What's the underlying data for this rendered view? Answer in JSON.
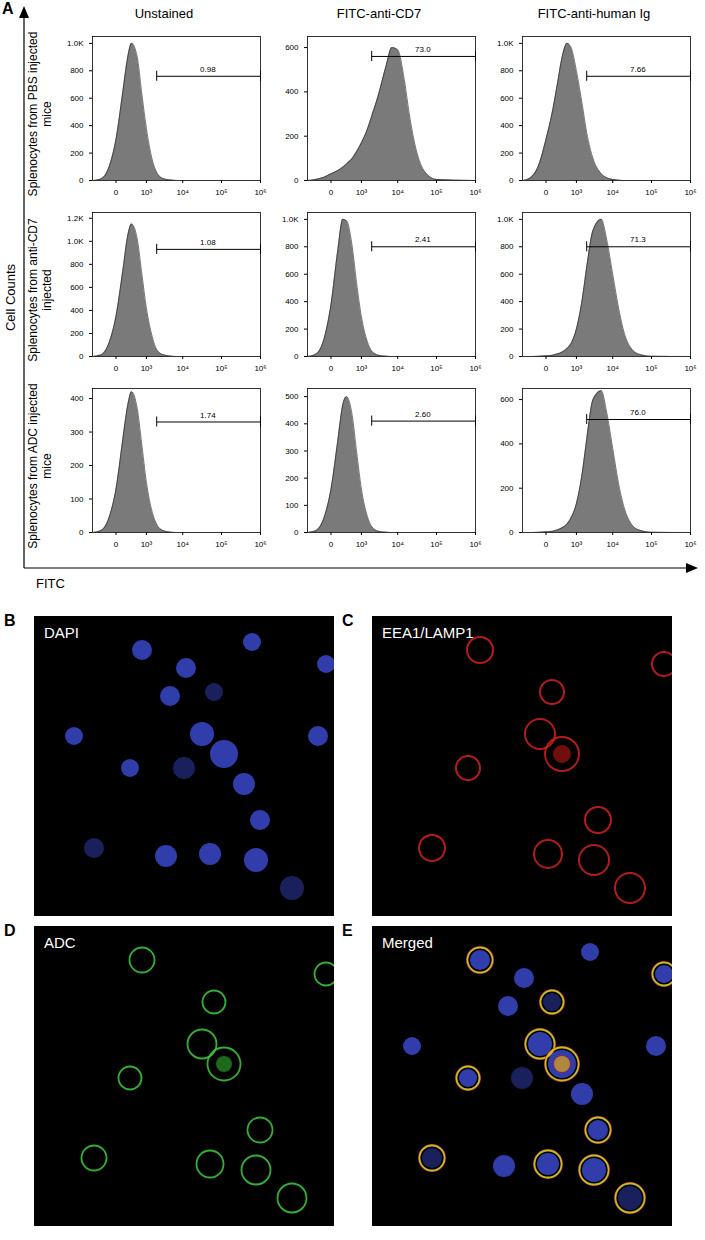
{
  "panel_a": {
    "letter": "A",
    "column_titles": [
      "Unstained",
      "FITC-anti-CD7",
      "FITC-anti-human Ig"
    ],
    "row_titles": [
      "Splenocytes from PBS injected mice",
      "Splenocytes from anti-CD7 injected",
      "Splenocytes from ADC injected mice"
    ],
    "y_label": "Cell Counts",
    "x_label": "FITC"
  },
  "chart_data": [
    {
      "type": "area",
      "color": "#7a7a7a",
      "log": "x",
      "x": [
        -600,
        -300,
        -100,
        0,
        100,
        200,
        300,
        500,
        700,
        1000,
        1500,
        2000,
        3000,
        5000,
        7000,
        10000,
        15000,
        20000,
        30000,
        50000,
        100000,
        1000000
      ],
      "values": [
        0,
        10,
        100,
        300,
        650,
        900,
        1000,
        900,
        650,
        380,
        150,
        60,
        15,
        3,
        0,
        0,
        0,
        0,
        0,
        0,
        0,
        0
      ],
      "xlim": [
        -600,
        1000000
      ],
      "xticks": [
        0,
        {
          "value": 1000,
          "label": "10³"
        },
        {
          "value": 10000,
          "label": "10⁴"
        },
        {
          "value": 100000,
          "label": "10⁵"
        },
        {
          "value": 1000000,
          "label": "10⁶"
        }
      ],
      "ylim": [
        0,
        1050
      ],
      "yticks": [
        0,
        200,
        400,
        600,
        800,
        {
          "value": 1000,
          "label": "1.0K"
        }
      ],
      "gate": {
        "x": [
          2000,
          1000000
        ],
        "y": 760,
        "label": "0.98"
      }
    },
    {
      "type": "area",
      "color": "#7a7a7a",
      "log": "x",
      "x": [
        -600,
        -300,
        -100,
        0,
        100,
        200,
        300,
        500,
        700,
        1000,
        1500,
        2000,
        3000,
        5000,
        7000,
        10000,
        15000,
        20000,
        30000,
        50000,
        100000,
        1000000
      ],
      "values": [
        0,
        5,
        15,
        30,
        45,
        60,
        75,
        100,
        130,
        170,
        230,
        290,
        380,
        520,
        600,
        590,
        450,
        300,
        140,
        40,
        5,
        0
      ],
      "xlim": [
        -600,
        1000000
      ],
      "xticks": [
        0,
        {
          "value": 1000,
          "label": "10³"
        },
        {
          "value": 10000,
          "label": "10⁴"
        },
        {
          "value": 100000,
          "label": "10⁵"
        },
        {
          "value": 1000000,
          "label": "10⁶"
        }
      ],
      "ylim": [
        0,
        650
      ],
      "yticks": [
        0,
        200,
        400,
        600
      ],
      "gate": {
        "x": [
          2000,
          1000000
        ],
        "y": 560,
        "label": "73.0"
      }
    },
    {
      "type": "area",
      "color": "#7a7a7a",
      "log": "x",
      "x": [
        -600,
        -300,
        -100,
        0,
        100,
        200,
        300,
        500,
        700,
        1000,
        1500,
        2000,
        3000,
        5000,
        7000,
        10000,
        15000,
        20000,
        30000,
        50000,
        100000,
        1000000
      ],
      "values": [
        0,
        20,
        120,
        300,
        520,
        720,
        880,
        1000,
        960,
        800,
        550,
        350,
        160,
        50,
        20,
        8,
        2,
        0,
        0,
        0,
        0,
        0
      ],
      "xlim": [
        -600,
        1000000
      ],
      "xticks": [
        0,
        {
          "value": 1000,
          "label": "10³"
        },
        {
          "value": 10000,
          "label": "10⁴"
        },
        {
          "value": 100000,
          "label": "10⁵"
        },
        {
          "value": 1000000,
          "label": "10⁶"
        }
      ],
      "ylim": [
        0,
        1050
      ],
      "yticks": [
        0,
        200,
        400,
        600,
        800,
        {
          "value": 1000,
          "label": "1.0K"
        }
      ],
      "gate": {
        "x": [
          2000,
          1000000
        ],
        "y": 760,
        "label": "7.66"
      }
    },
    {
      "type": "area",
      "color": "#7a7a7a",
      "log": "x",
      "x": [
        -600,
        -300,
        -100,
        0,
        100,
        200,
        300,
        500,
        700,
        1000,
        1500,
        2000,
        3000,
        5000,
        7000,
        10000,
        15000,
        20000,
        30000,
        50000,
        100000,
        1000000
      ],
      "values": [
        0,
        12,
        120,
        350,
        750,
        1050,
        1150,
        1020,
        740,
        420,
        170,
        60,
        15,
        3,
        0,
        0,
        0,
        0,
        0,
        0,
        0,
        0
      ],
      "xlim": [
        -600,
        1000000
      ],
      "xticks": [
        0,
        {
          "value": 1000,
          "label": "10³"
        },
        {
          "value": 10000,
          "label": "10⁴"
        },
        {
          "value": 100000,
          "label": "10⁵"
        },
        {
          "value": 1000000,
          "label": "10⁶"
        }
      ],
      "ylim": [
        0,
        1250
      ],
      "yticks": [
        0,
        200,
        400,
        600,
        800,
        {
          "value": 1000,
          "label": "1.0K"
        },
        {
          "value": 1200,
          "label": "1.2K"
        }
      ],
      "gate": {
        "x": [
          2000,
          1000000
        ],
        "y": 930,
        "label": "1.08"
      }
    },
    {
      "type": "area",
      "color": "#7a7a7a",
      "log": "x",
      "x": [
        -600,
        -300,
        -100,
        0,
        100,
        200,
        300,
        500,
        700,
        1000,
        1500,
        2000,
        3000,
        5000,
        7000,
        10000,
        15000,
        20000,
        30000,
        50000,
        100000,
        1000000
      ],
      "values": [
        0,
        15,
        130,
        380,
        780,
        1000,
        990,
        800,
        540,
        290,
        110,
        40,
        10,
        2,
        0,
        0,
        0,
        0,
        0,
        0,
        0,
        0
      ],
      "xlim": [
        -600,
        1000000
      ],
      "xticks": [
        0,
        {
          "value": 1000,
          "label": "10³"
        },
        {
          "value": 10000,
          "label": "10⁴"
        },
        {
          "value": 100000,
          "label": "10⁵"
        },
        {
          "value": 1000000,
          "label": "10⁶"
        }
      ],
      "ylim": [
        0,
        1050
      ],
      "yticks": [
        0,
        200,
        400,
        600,
        800,
        {
          "value": 1000,
          "label": "1.0K"
        }
      ],
      "gate": {
        "x": [
          2000,
          1000000
        ],
        "y": 800,
        "label": "2.41"
      }
    },
    {
      "type": "area",
      "color": "#7a7a7a",
      "log": "x",
      "x": [
        -600,
        -300,
        -100,
        0,
        100,
        200,
        300,
        500,
        700,
        1000,
        1500,
        2000,
        3000,
        5000,
        7000,
        10000,
        15000,
        20000,
        30000,
        50000,
        100000,
        1000000
      ],
      "values": [
        0,
        0,
        2,
        5,
        10,
        20,
        30,
        60,
        100,
        200,
        420,
        650,
        920,
        1000,
        850,
        600,
        320,
        170,
        60,
        15,
        2,
        0
      ],
      "xlim": [
        -600,
        1000000
      ],
      "xticks": [
        0,
        {
          "value": 1000,
          "label": "10³"
        },
        {
          "value": 10000,
          "label": "10⁴"
        },
        {
          "value": 100000,
          "label": "10⁵"
        },
        {
          "value": 1000000,
          "label": "10⁶"
        }
      ],
      "ylim": [
        0,
        1050
      ],
      "yticks": [
        0,
        200,
        400,
        600,
        800,
        {
          "value": 1000,
          "label": "1.0K"
        }
      ],
      "gate": {
        "x": [
          2000,
          1000000
        ],
        "y": 800,
        "label": "71.3"
      }
    },
    {
      "type": "area",
      "color": "#7a7a7a",
      "log": "x",
      "x": [
        -600,
        -300,
        -100,
        0,
        100,
        200,
        300,
        500,
        700,
        1000,
        1500,
        2000,
        3000,
        5000,
        7000,
        10000,
        15000,
        20000,
        30000,
        50000,
        100000,
        1000000
      ],
      "values": [
        0,
        5,
        45,
        130,
        280,
        380,
        420,
        370,
        270,
        150,
        60,
        25,
        6,
        1,
        0,
        0,
        0,
        0,
        0,
        0,
        0,
        0
      ],
      "xlim": [
        -600,
        1000000
      ],
      "xticks": [
        0,
        {
          "value": 1000,
          "label": "10³"
        },
        {
          "value": 10000,
          "label": "10⁴"
        },
        {
          "value": 100000,
          "label": "10⁵"
        },
        {
          "value": 1000000,
          "label": "10⁶"
        }
      ],
      "ylim": [
        0,
        430
      ],
      "yticks": [
        0,
        100,
        200,
        300,
        400
      ],
      "gate": {
        "x": [
          2000,
          1000000
        ],
        "y": 330,
        "label": "1.74"
      }
    },
    {
      "type": "area",
      "color": "#7a7a7a",
      "log": "x",
      "x": [
        -600,
        -300,
        -100,
        0,
        100,
        200,
        300,
        500,
        700,
        1000,
        1500,
        2000,
        3000,
        5000,
        7000,
        10000,
        15000,
        20000,
        30000,
        50000,
        100000,
        1000000
      ],
      "values": [
        0,
        6,
        55,
        160,
        340,
        470,
        500,
        430,
        300,
        160,
        60,
        22,
        5,
        1,
        0,
        0,
        0,
        0,
        0,
        0,
        0,
        0
      ],
      "xlim": [
        -600,
        1000000
      ],
      "xticks": [
        0,
        {
          "value": 1000,
          "label": "10³"
        },
        {
          "value": 10000,
          "label": "10⁴"
        },
        {
          "value": 100000,
          "label": "10⁵"
        },
        {
          "value": 1000000,
          "label": "10⁶"
        }
      ],
      "ylim": [
        0,
        530
      ],
      "yticks": [
        0,
        100,
        200,
        300,
        400,
        500
      ],
      "gate": {
        "x": [
          2000,
          1000000
        ],
        "y": 410,
        "label": "2.60"
      }
    },
    {
      "type": "area",
      "color": "#7a7a7a",
      "log": "x",
      "x": [
        -600,
        -300,
        -100,
        0,
        100,
        200,
        300,
        500,
        700,
        1000,
        1500,
        2000,
        3000,
        5000,
        7000,
        10000,
        15000,
        20000,
        30000,
        50000,
        100000,
        1000000
      ],
      "values": [
        0,
        0,
        1,
        3,
        6,
        12,
        20,
        40,
        70,
        130,
        270,
        420,
        600,
        640,
        540,
        380,
        200,
        110,
        40,
        10,
        1,
        0
      ],
      "xlim": [
        -600,
        1000000
      ],
      "xticks": [
        0,
        {
          "value": 1000,
          "label": "10³"
        },
        {
          "value": 10000,
          "label": "10⁴"
        },
        {
          "value": 100000,
          "label": "10⁵"
        },
        {
          "value": 1000000,
          "label": "10⁶"
        }
      ],
      "ylim": [
        0,
        650
      ],
      "yticks": [
        0,
        200,
        400,
        600
      ],
      "gate": {
        "x": [
          2000,
          1000000
        ],
        "y": 510,
        "label": "76.0"
      }
    }
  ],
  "images": [
    {
      "letter": "B",
      "label": "DAPI"
    },
    {
      "letter": "C",
      "label": "EEA1/LAMP1"
    },
    {
      "letter": "D",
      "label": "ADC"
    },
    {
      "letter": "E",
      "label": "Merged"
    }
  ]
}
